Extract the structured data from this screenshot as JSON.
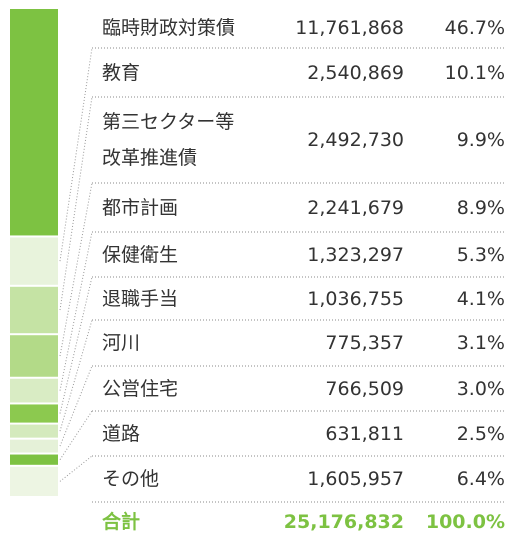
{
  "chart_data": {
    "type": "stacked-bar",
    "categories": [
      "臨時財政対策債",
      "教育",
      "第三セクター等\n改革推進債",
      "都市計画",
      "保健衛生",
      "退職手当",
      "河川",
      "公営住宅",
      "道路",
      "その他"
    ],
    "values": [
      11761868,
      2540869,
      2492730,
      2241679,
      1323297,
      1036755,
      775357,
      766509,
      631811,
      1605957
    ],
    "value_labels": [
      "11,761,868",
      "2,540,869",
      "2,492,730",
      "2,241,679",
      "1,323,297",
      "1,036,755",
      "775,357",
      "766,509",
      "631,811",
      "1,605,957"
    ],
    "percents": [
      46.7,
      10.1,
      9.9,
      8.9,
      5.3,
      4.1,
      3.1,
      3.0,
      2.5,
      6.4
    ],
    "percent_labels": [
      "46.7%",
      "10.1%",
      "9.9%",
      "8.9%",
      "5.3%",
      "4.1%",
      "3.1%",
      "3.0%",
      "2.5%",
      "6.4%"
    ],
    "colors": [
      "#7dc242",
      "#e8f3dc",
      "#c5e3a4",
      "#b3da88",
      "#d9ecc4",
      "#8cc94f",
      "#d4eabd",
      "#e5f1d8",
      "#7dc242",
      "#edf5e3"
    ],
    "total_label": "合計",
    "total": 25176832,
    "total_value_label": "25,176,832",
    "total_percent": 100.0,
    "total_percent_label": "100.0%"
  }
}
